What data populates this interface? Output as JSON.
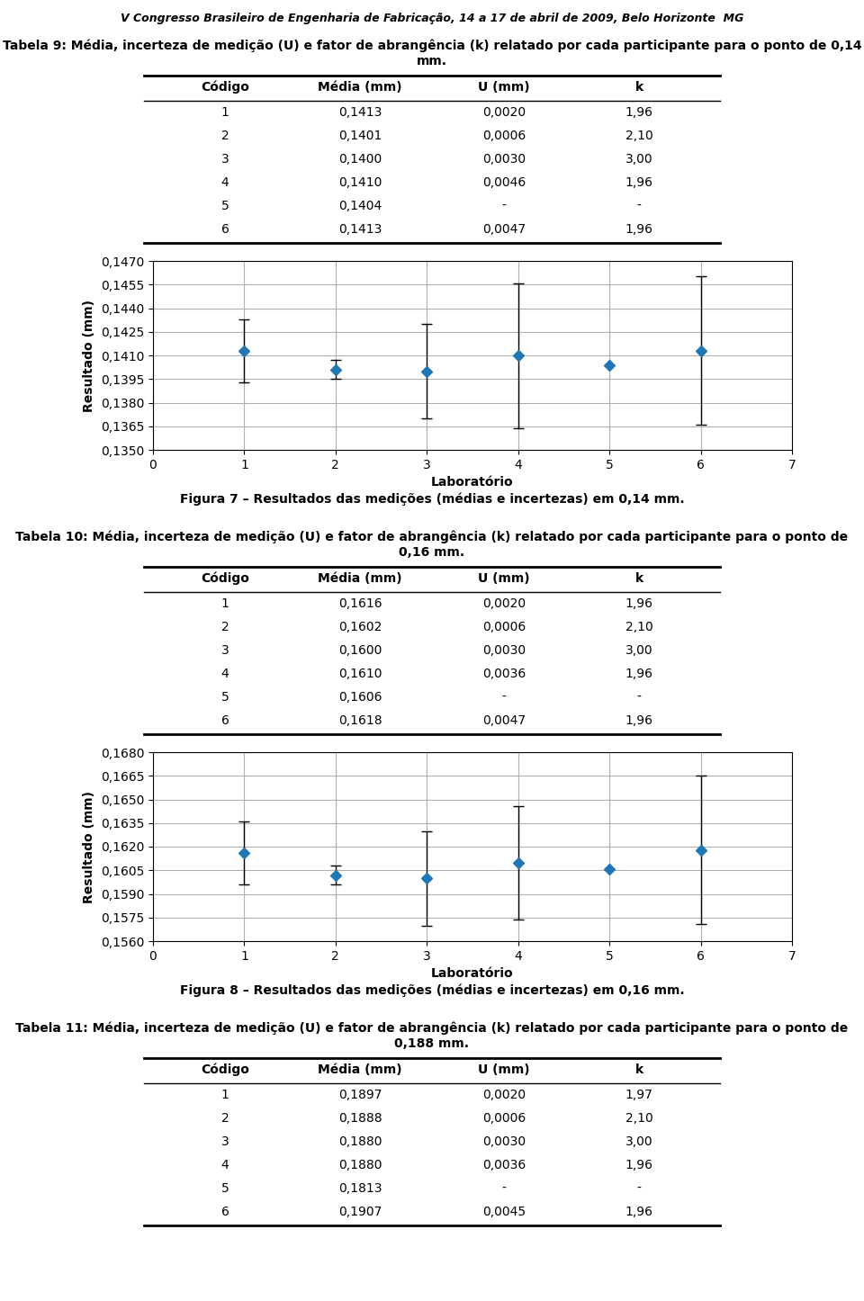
{
  "header": "V Congresso Brasileiro de Engenharia de Fabricação, 14 a 17 de abril de 2009, Belo Horizonte  MG",
  "tables": [
    {
      "title": "Tabela 9: Média, incerteza de medição (U) e fator de abrangência (k) relatado por cada participante para o ponto de 0,14 mm.",
      "headers": [
        "Código",
        "Média (mm)",
        "U (mm)",
        "k"
      ],
      "rows": [
        [
          "1",
          "0,1413",
          "0,0020",
          "1,96"
        ],
        [
          "2",
          "0,1401",
          "0,0006",
          "2,10"
        ],
        [
          "3",
          "0,1400",
          "0,0030",
          "3,00"
        ],
        [
          "4",
          "0,1410",
          "0,0046",
          "1,96"
        ],
        [
          "5",
          "0,1404",
          "-",
          "-"
        ],
        [
          "6",
          "0,1413",
          "0,0047",
          "1,96"
        ]
      ]
    },
    {
      "title": "Tabela 10: Média, incerteza de medição (U) e fator de abrangência (k) relatado por cada participante para o ponto de 0,16 mm.",
      "headers": [
        "Código",
        "Média (mm)",
        "U (mm)",
        "k"
      ],
      "rows": [
        [
          "1",
          "0,1616",
          "0,0020",
          "1,96"
        ],
        [
          "2",
          "0,1602",
          "0,0006",
          "2,10"
        ],
        [
          "3",
          "0,1600",
          "0,0030",
          "3,00"
        ],
        [
          "4",
          "0,1610",
          "0,0036",
          "1,96"
        ],
        [
          "5",
          "0,1606",
          "-",
          "-"
        ],
        [
          "6",
          "0,1618",
          "0,0047",
          "1,96"
        ]
      ]
    },
    {
      "title": "Tabela 11: Média, incerteza de medição (U) e fator de abrangência (k) relatado por cada participante para o ponto de 0,188 mm.",
      "headers": [
        "Código",
        "Média (mm)",
        "U (mm)",
        "k"
      ],
      "rows": [
        [
          "1",
          "0,1897",
          "0,0020",
          "1,97"
        ],
        [
          "2",
          "0,1888",
          "0,0006",
          "2,10"
        ],
        [
          "3",
          "0,1880",
          "0,0030",
          "3,00"
        ],
        [
          "4",
          "0,1880",
          "0,0036",
          "1,96"
        ],
        [
          "5",
          "0,1813",
          "-",
          "-"
        ],
        [
          "6",
          "0,1907",
          "0,0045",
          "1,96"
        ]
      ]
    }
  ],
  "chart_data": [
    {
      "type": "scatter",
      "title": "Figura 7 – Resultados das medições (médias e incertezas) em 0,14 mm.",
      "x_label": "Laboratório",
      "y_label": "Resultado (mm)",
      "x": [
        1,
        2,
        3,
        4,
        5,
        6
      ],
      "values": [
        0.1413,
        0.1401,
        0.14,
        0.141,
        0.1404,
        0.1413
      ],
      "errors": [
        0.002,
        0.0006,
        0.003,
        0.0046,
        null,
        0.0047
      ],
      "xlim": [
        0,
        7
      ],
      "ylim": [
        0.135,
        0.147
      ],
      "xticks": [
        0,
        1,
        2,
        3,
        4,
        5,
        6,
        7
      ],
      "yticks": [
        {
          "value": 0.135,
          "label": "0,1350"
        },
        {
          "value": 0.1365,
          "label": "0,1365"
        },
        {
          "value": 0.138,
          "label": "0,1380"
        },
        {
          "value": 0.1395,
          "label": "0,1395"
        },
        {
          "value": 0.141,
          "label": "0,1410"
        },
        {
          "value": 0.1425,
          "label": "0,1425"
        },
        {
          "value": 0.144,
          "label": "0,1440"
        },
        {
          "value": 0.1455,
          "label": "0,1455"
        },
        {
          "value": 0.147,
          "label": "0,1470"
        }
      ],
      "grid": true,
      "marker": "diamond"
    },
    {
      "type": "scatter",
      "title": "Figura 8 – Resultados das medições (médias e incertezas) em 0,16 mm.",
      "x_label": "Laboratório",
      "y_label": "Resultado (mm)",
      "x": [
        1,
        2,
        3,
        4,
        5,
        6
      ],
      "values": [
        0.1616,
        0.1602,
        0.16,
        0.161,
        0.1606,
        0.1618
      ],
      "errors": [
        0.002,
        0.0006,
        0.003,
        0.0036,
        null,
        0.0047
      ],
      "xlim": [
        0,
        7
      ],
      "ylim": [
        0.156,
        0.168
      ],
      "xticks": [
        0,
        1,
        2,
        3,
        4,
        5,
        6,
        7
      ],
      "yticks": [
        {
          "value": 0.156,
          "label": "0,1560"
        },
        {
          "value": 0.1575,
          "label": "0,1575"
        },
        {
          "value": 0.159,
          "label": "0,1590"
        },
        {
          "value": 0.1605,
          "label": "0,1605"
        },
        {
          "value": 0.162,
          "label": "0,1620"
        },
        {
          "value": 0.1635,
          "label": "0,1635"
        },
        {
          "value": 0.165,
          "label": "0,1650"
        },
        {
          "value": 0.1665,
          "label": "0,1665"
        },
        {
          "value": 0.168,
          "label": "0,1680"
        }
      ],
      "grid": true,
      "marker": "diamond"
    }
  ]
}
